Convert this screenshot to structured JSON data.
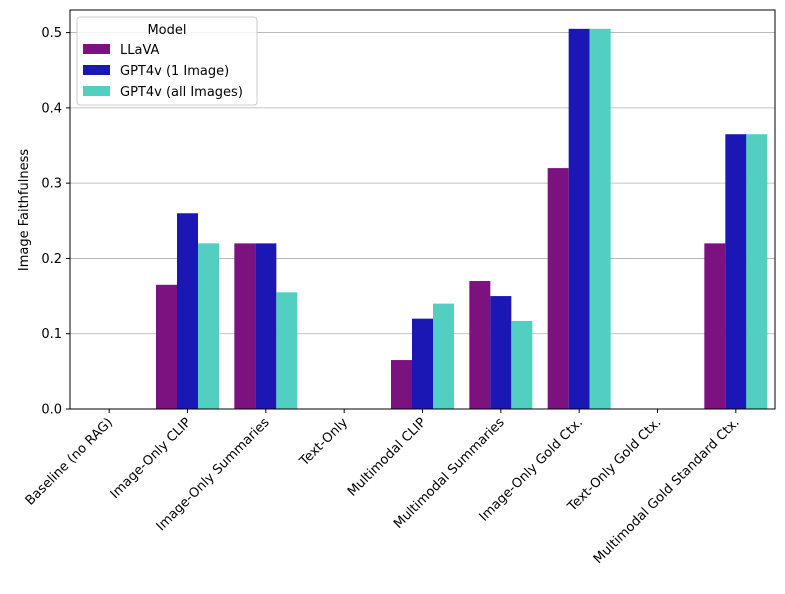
{
  "chart_data": {
    "type": "bar",
    "title": "",
    "xlabel": "",
    "ylabel": "Image Faithfulness",
    "ylim": [
      0,
      0.53
    ],
    "yticks": [
      0.0,
      0.1,
      0.2,
      0.3,
      0.4,
      0.5
    ],
    "ytick_labels": [
      "0.0",
      "0.1",
      "0.2",
      "0.3",
      "0.4",
      "0.5"
    ],
    "grid": "y-major",
    "legend": {
      "title": "Model",
      "placement": "upper-left"
    },
    "categories": [
      "Baseline (no RAG)",
      "Image-Only CLIP",
      "Image-Only Summaries",
      "Text-Only",
      "Multimodal CLIP",
      "Multimodal Summaries",
      "Image-Only Gold Ctx.",
      "Text-Only Gold Ctx.",
      "Multimodal Gold Standard Ctx."
    ],
    "series": [
      {
        "name": "LLaVA",
        "color": "#7b1280",
        "values": [
          0,
          0.165,
          0.22,
          0,
          0.065,
          0.17,
          0.32,
          0,
          0.22
        ]
      },
      {
        "name": "GPT4v (1 Image)",
        "color": "#1a17b5",
        "values": [
          0,
          0.26,
          0.22,
          0,
          0.12,
          0.15,
          0.505,
          0,
          0.365
        ]
      },
      {
        "name": "GPT4v (all Images)",
        "color": "#53cfc1",
        "values": [
          0,
          0.22,
          0.155,
          0,
          0.14,
          0.117,
          0.505,
          0,
          0.365
        ]
      }
    ]
  }
}
